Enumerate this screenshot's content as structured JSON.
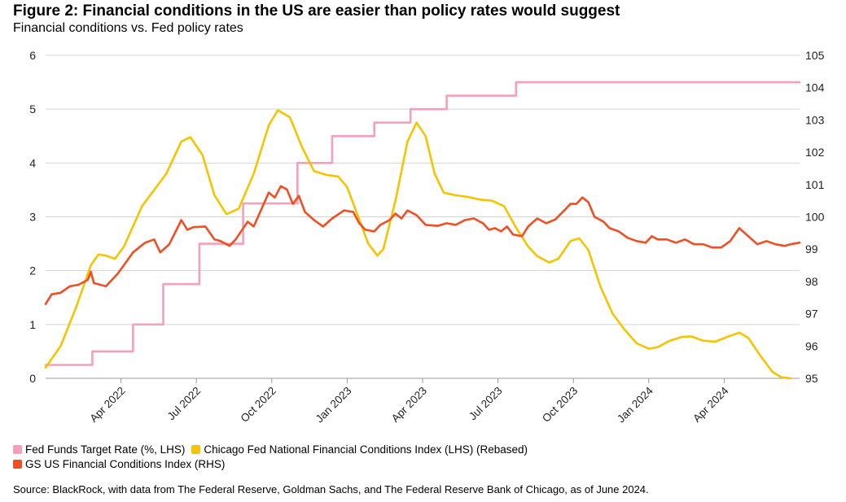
{
  "title": "Figure 2: Financial conditions in the US are easier than policy rates would suggest",
  "subtitle": "Financial conditions vs. Fed policy rates",
  "source": "Source: BlackRock, with data from The Federal Reserve, Goldman Sachs, and The Federal Reserve Bank of Chicago, as of June 2024.",
  "chart_data": {
    "type": "line",
    "grid": true,
    "x_range": [
      2022.0,
      2024.5
    ],
    "x_ticks": [
      {
        "label": "Apr 2022",
        "x": 2022.25
      },
      {
        "label": "Jul 2022",
        "x": 2022.5
      },
      {
        "label": "Oct 2022",
        "x": 2022.75
      },
      {
        "label": "Jan 2023",
        "x": 2023.0
      },
      {
        "label": "Apr 2023",
        "x": 2023.25
      },
      {
        "label": "Jul 2023",
        "x": 2023.5
      },
      {
        "label": "Oct 2023",
        "x": 2023.75
      },
      {
        "label": "Jan 2024",
        "x": 2024.0
      },
      {
        "label": "Apr 2024",
        "x": 2024.25
      }
    ],
    "y_left": {
      "min": 0,
      "max": 6,
      "ticks": [
        "0",
        "1",
        "2",
        "3",
        "4",
        "5",
        "6"
      ]
    },
    "y_right": {
      "min": 95,
      "max": 105,
      "ticks": [
        "95",
        "96",
        "97",
        "98",
        "99",
        "100",
        "101",
        "102",
        "103",
        "104",
        "105"
      ]
    },
    "legend_position": "bottom",
    "series": [
      {
        "name": "Fed Funds Target Rate (%, LHS)",
        "axis": "left",
        "color": "#f4a0b9",
        "step": true,
        "points": [
          [
            2022.0,
            0.25
          ],
          [
            2022.155,
            0.25
          ],
          [
            2022.155,
            0.5
          ],
          [
            2022.29,
            0.5
          ],
          [
            2022.29,
            1.0
          ],
          [
            2022.39,
            1.0
          ],
          [
            2022.39,
            1.75
          ],
          [
            2022.51,
            1.75
          ],
          [
            2022.51,
            2.5
          ],
          [
            2022.655,
            2.5
          ],
          [
            2022.655,
            3.25
          ],
          [
            2022.835,
            3.25
          ],
          [
            2022.835,
            4.0
          ],
          [
            2022.95,
            4.0
          ],
          [
            2022.95,
            4.5
          ],
          [
            2023.09,
            4.5
          ],
          [
            2023.09,
            4.75
          ],
          [
            2023.21,
            4.75
          ],
          [
            2023.21,
            5.0
          ],
          [
            2023.33,
            5.0
          ],
          [
            2023.33,
            5.25
          ],
          [
            2023.56,
            5.25
          ],
          [
            2023.56,
            5.5
          ],
          [
            2024.5,
            5.5
          ]
        ]
      },
      {
        "name": "Chicago Fed National Financial Conditions Index (LHS) (Rebased)",
        "axis": "left",
        "color": "#f5c400",
        "points": [
          [
            2022.0,
            0.2
          ],
          [
            2022.05,
            0.6
          ],
          [
            2022.1,
            1.3
          ],
          [
            2022.15,
            2.1
          ],
          [
            2022.175,
            2.3
          ],
          [
            2022.2,
            2.28
          ],
          [
            2022.23,
            2.22
          ],
          [
            2022.26,
            2.45
          ],
          [
            2022.32,
            3.2
          ],
          [
            2022.4,
            3.8
          ],
          [
            2022.45,
            4.4
          ],
          [
            2022.48,
            4.48
          ],
          [
            2022.52,
            4.15
          ],
          [
            2022.56,
            3.4
          ],
          [
            2022.6,
            3.05
          ],
          [
            2022.64,
            3.15
          ],
          [
            2022.69,
            3.8
          ],
          [
            2022.74,
            4.7
          ],
          [
            2022.77,
            4.98
          ],
          [
            2022.81,
            4.85
          ],
          [
            2022.85,
            4.3
          ],
          [
            2022.89,
            3.85
          ],
          [
            2022.93,
            3.78
          ],
          [
            2022.97,
            3.75
          ],
          [
            2023.0,
            3.55
          ],
          [
            2023.03,
            3.1
          ],
          [
            2023.07,
            2.5
          ],
          [
            2023.1,
            2.28
          ],
          [
            2023.12,
            2.4
          ],
          [
            2023.16,
            3.3
          ],
          [
            2023.2,
            4.4
          ],
          [
            2023.23,
            4.75
          ],
          [
            2023.26,
            4.5
          ],
          [
            2023.29,
            3.8
          ],
          [
            2023.32,
            3.45
          ],
          [
            2023.36,
            3.4
          ],
          [
            2023.4,
            3.37
          ],
          [
            2023.44,
            3.32
          ],
          [
            2023.48,
            3.3
          ],
          [
            2023.52,
            3.2
          ],
          [
            2023.56,
            2.8
          ],
          [
            2023.6,
            2.45
          ],
          [
            2023.63,
            2.27
          ],
          [
            2023.67,
            2.15
          ],
          [
            2023.7,
            2.22
          ],
          [
            2023.74,
            2.55
          ],
          [
            2023.77,
            2.6
          ],
          [
            2023.8,
            2.38
          ],
          [
            2023.84,
            1.7
          ],
          [
            2023.88,
            1.2
          ],
          [
            2023.92,
            0.9
          ],
          [
            2023.96,
            0.65
          ],
          [
            2024.0,
            0.55
          ],
          [
            2024.03,
            0.58
          ],
          [
            2024.07,
            0.7
          ],
          [
            2024.11,
            0.77
          ],
          [
            2024.14,
            0.78
          ],
          [
            2024.18,
            0.7
          ],
          [
            2024.22,
            0.68
          ],
          [
            2024.26,
            0.77
          ],
          [
            2024.3,
            0.85
          ],
          [
            2024.33,
            0.75
          ],
          [
            2024.37,
            0.42
          ],
          [
            2024.41,
            0.12
          ],
          [
            2024.44,
            0.02
          ],
          [
            2024.47,
            0.0
          ]
        ]
      },
      {
        "name": "GS US Financial Conditions Index (RHS)",
        "axis": "right",
        "color": "#f04e23",
        "points": [
          [
            2022.0,
            97.3
          ],
          [
            2022.02,
            97.6
          ],
          [
            2022.05,
            97.65
          ],
          [
            2022.08,
            97.85
          ],
          [
            2022.11,
            97.9
          ],
          [
            2022.14,
            98.05
          ],
          [
            2022.15,
            98.3
          ],
          [
            2022.16,
            97.95
          ],
          [
            2022.2,
            97.85
          ],
          [
            2022.24,
            98.25
          ],
          [
            2022.29,
            98.9
          ],
          [
            2022.33,
            99.2
          ],
          [
            2022.36,
            99.3
          ],
          [
            2022.38,
            98.9
          ],
          [
            2022.41,
            99.15
          ],
          [
            2022.45,
            99.9
          ],
          [
            2022.47,
            99.6
          ],
          [
            2022.49,
            99.68
          ],
          [
            2022.53,
            99.7
          ],
          [
            2022.56,
            99.3
          ],
          [
            2022.58,
            99.25
          ],
          [
            2022.61,
            99.1
          ],
          [
            2022.63,
            99.3
          ],
          [
            2022.67,
            99.85
          ],
          [
            2022.69,
            99.7
          ],
          [
            2022.74,
            100.75
          ],
          [
            2022.76,
            100.6
          ],
          [
            2022.78,
            100.95
          ],
          [
            2022.8,
            100.85
          ],
          [
            2022.82,
            100.4
          ],
          [
            2022.84,
            100.65
          ],
          [
            2022.86,
            100.15
          ],
          [
            2022.89,
            99.9
          ],
          [
            2022.92,
            99.7
          ],
          [
            2022.95,
            99.95
          ],
          [
            2022.99,
            100.2
          ],
          [
            2023.02,
            100.15
          ],
          [
            2023.04,
            99.8
          ],
          [
            2023.06,
            99.6
          ],
          [
            2023.09,
            99.55
          ],
          [
            2023.11,
            99.75
          ],
          [
            2023.14,
            99.9
          ],
          [
            2023.16,
            100.1
          ],
          [
            2023.18,
            99.95
          ],
          [
            2023.2,
            100.2
          ],
          [
            2023.23,
            100.05
          ],
          [
            2023.26,
            99.75
          ],
          [
            2023.3,
            99.72
          ],
          [
            2023.33,
            99.8
          ],
          [
            2023.36,
            99.75
          ],
          [
            2023.39,
            99.9
          ],
          [
            2023.42,
            99.95
          ],
          [
            2023.45,
            99.8
          ],
          [
            2023.47,
            99.6
          ],
          [
            2023.49,
            99.65
          ],
          [
            2023.51,
            99.55
          ],
          [
            2023.53,
            99.7
          ],
          [
            2023.55,
            99.45
          ],
          [
            2023.58,
            99.4
          ],
          [
            2023.6,
            99.7
          ],
          [
            2023.63,
            99.95
          ],
          [
            2023.66,
            99.8
          ],
          [
            2023.69,
            99.92
          ],
          [
            2023.72,
            100.2
          ],
          [
            2023.74,
            100.4
          ],
          [
            2023.76,
            100.4
          ],
          [
            2023.78,
            100.6
          ],
          [
            2023.8,
            100.45
          ],
          [
            2023.82,
            100.0
          ],
          [
            2023.85,
            99.85
          ],
          [
            2023.87,
            99.65
          ],
          [
            2023.9,
            99.55
          ],
          [
            2023.93,
            99.35
          ],
          [
            2023.96,
            99.25
          ],
          [
            2023.99,
            99.2
          ],
          [
            2024.01,
            99.4
          ],
          [
            2024.03,
            99.3
          ],
          [
            2024.06,
            99.3
          ],
          [
            2024.09,
            99.2
          ],
          [
            2024.12,
            99.3
          ],
          [
            2024.15,
            99.15
          ],
          [
            2024.18,
            99.15
          ],
          [
            2024.21,
            99.05
          ],
          [
            2024.24,
            99.05
          ],
          [
            2024.27,
            99.25
          ],
          [
            2024.3,
            99.65
          ],
          [
            2024.33,
            99.4
          ],
          [
            2024.36,
            99.15
          ],
          [
            2024.39,
            99.25
          ],
          [
            2024.42,
            99.15
          ],
          [
            2024.45,
            99.1
          ],
          [
            2024.47,
            99.15
          ],
          [
            2024.5,
            99.2
          ]
        ]
      }
    ]
  }
}
